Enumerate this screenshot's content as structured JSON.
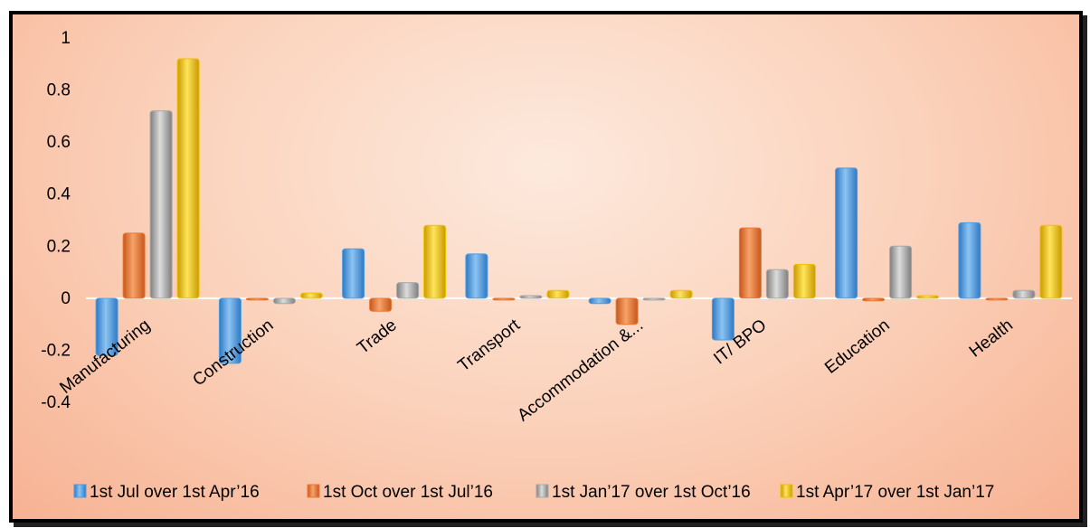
{
  "chart_data": {
    "type": "bar",
    "categories": [
      "Manufacturing",
      "Construction",
      "Trade",
      "Transport",
      "Accommodation &...",
      "IT/ BPO",
      "Education",
      "Health"
    ],
    "series": [
      {
        "name": "1st Jul over 1st  Apr’16",
        "color": "#4f9de0",
        "values": [
          -0.22,
          -0.25,
          0.19,
          0.17,
          -0.02,
          -0.16,
          0.5,
          0.29
        ]
      },
      {
        "name": "1st Oct over 1st Jul’16",
        "color": "#ec7a35",
        "values": [
          0.25,
          0.0,
          -0.05,
          0.0,
          -0.1,
          0.27,
          -0.01,
          -0.003
        ]
      },
      {
        "name": "1st Jan’17 over 1st Oct’16",
        "color": "#a8a8a8",
        "values": [
          0.72,
          -0.02,
          0.06,
          0.01,
          -0.005,
          0.11,
          0.2,
          0.03
        ]
      },
      {
        "name": "1st Apr’17 over 1st Jan’17",
        "color": "#f2c200",
        "values": [
          0.92,
          0.02,
          0.28,
          0.03,
          0.03,
          0.13,
          0.01,
          0.28
        ]
      }
    ],
    "yticks": [
      "1",
      "0.8",
      "0.6",
      "0.4",
      "0.2",
      "0",
      "-0.2",
      "-0.4"
    ],
    "ylim": [
      -0.4,
      1
    ],
    "legend_position": "bottom",
    "grid": false
  }
}
